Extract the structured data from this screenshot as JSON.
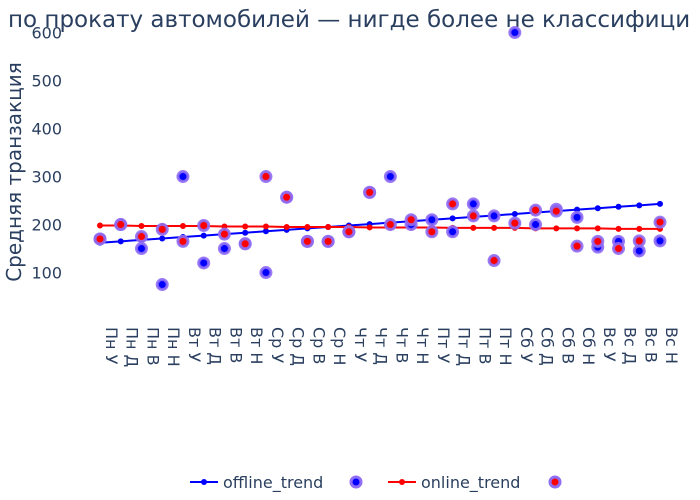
{
  "chart_data": {
    "type": "scatter",
    "title": "по прокату автомобилей — нигде более не классифици",
    "ylabel": "Средняя транзакция",
    "xlabel": "",
    "ylim": [
      22,
      622
    ],
    "yticks": [
      100,
      200,
      300,
      400,
      500,
      600
    ],
    "grid": false,
    "legend_position": "bottom",
    "categories": [
      "Пн У",
      "Пн Д",
      "Пн В",
      "Пн Н",
      "Вт У",
      "Вт Д",
      "Вт В",
      "Вт Н",
      "Ср У",
      "Ср Д",
      "Ср В",
      "Ср Н",
      "Чт У",
      "Чт Д",
      "Чт В",
      "Чт Н",
      "Пт У",
      "Пт Д",
      "Пт В",
      "Пт Н",
      "Сб У",
      "Сб Д",
      "Сб В",
      "Сб Н",
      "Вс У",
      "Вс Д",
      "Вс В",
      "Вс Н"
    ],
    "series": [
      {
        "name": "offline_trend",
        "kind": "line",
        "color": "#0000ff",
        "values": [
          162,
          165,
          168,
          171,
          174,
          177,
          180,
          183,
          186,
          189,
          192,
          195,
          198,
          201,
          204,
          207,
          210,
          213,
          216,
          219,
          222,
          225,
          228,
          231,
          234,
          237,
          240,
          243
        ]
      },
      {
        "name": "",
        "kind": "markers",
        "color": "#0000ff",
        "outline": "#8f6df5",
        "values": [
          170,
          200,
          150,
          75,
          300,
          120,
          150,
          160,
          100,
          257,
          165,
          165,
          185,
          267,
          300,
          200,
          210,
          185,
          243,
          218,
          600,
          200,
          232,
          215,
          153,
          165,
          145,
          166
        ]
      },
      {
        "name": "online_trend",
        "kind": "line",
        "color": "#ff0000",
        "values": [
          198,
          198,
          197,
          197,
          197,
          197,
          196,
          196,
          196,
          195,
          195,
          195,
          195,
          194,
          194,
          194,
          194,
          193,
          193,
          193,
          193,
          192,
          192,
          192,
          192,
          191,
          191,
          191
        ]
      },
      {
        "name": "",
        "kind": "markers",
        "color": "#ff0000",
        "outline": "#8f6df5",
        "values": [
          170,
          200,
          175,
          190,
          165,
          198,
          180,
          160,
          300,
          257,
          165,
          165,
          185,
          267,
          200,
          210,
          185,
          243,
          218,
          125,
          203,
          230,
          228,
          155,
          165,
          150,
          166,
          205
        ]
      }
    ]
  }
}
